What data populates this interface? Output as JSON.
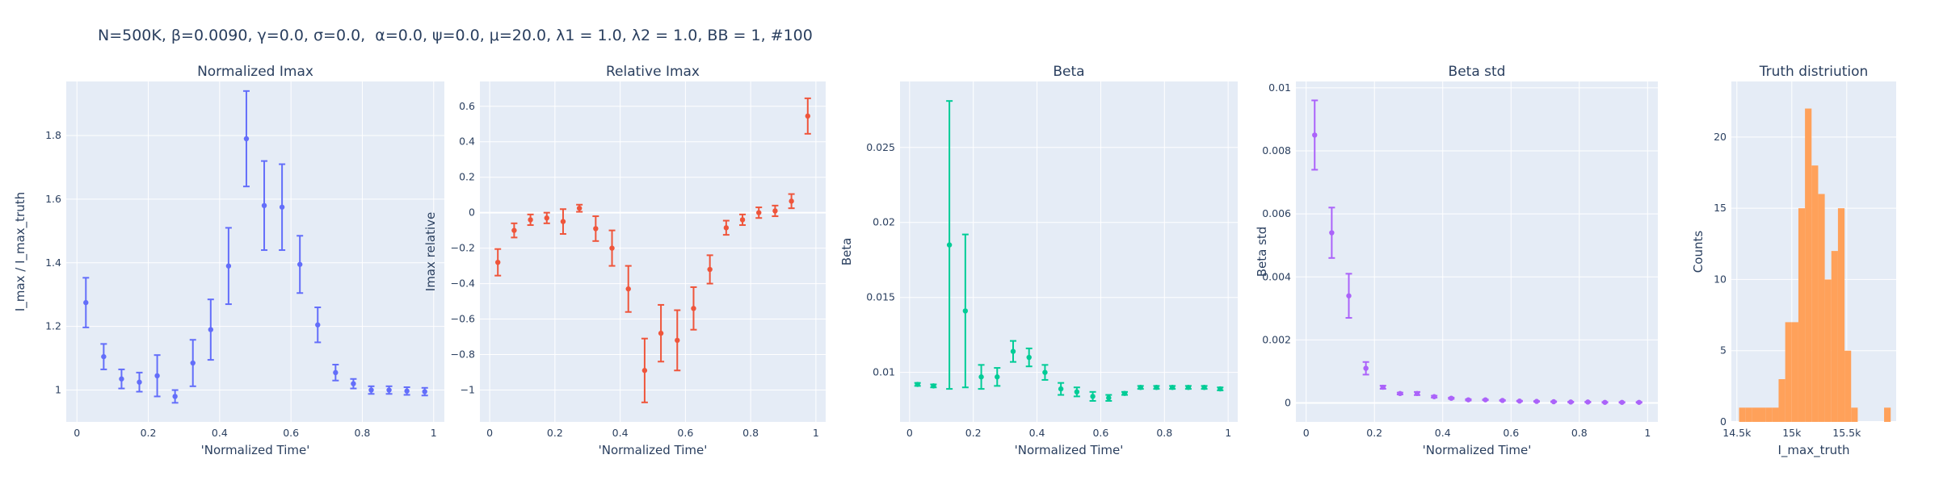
{
  "header": {
    "title": "N=500K, β=0.0090, γ=0.0, σ=0.0,  α=0.0, ψ=0.0, μ=20.0, λ1 = 1.0, λ2 = 1.0, BB = 1, #100"
  },
  "colors": {
    "plot_bg": "#e5ecf6",
    "grid": "#ffffff",
    "text": "#2a3f5f",
    "series": [
      "#636efa",
      "#ef553b",
      "#00cc96",
      "#ab63fa",
      "#ffa15a"
    ]
  },
  "chart_data": [
    {
      "type": "scatter",
      "title": "Normalized Imax",
      "xlabel": "'Normalized Time'",
      "ylabel": "I_max / I_max_truth",
      "xlim": [
        -0.03,
        1.03
      ],
      "ylim": [
        0.9,
        1.97
      ],
      "xticks": [
        0,
        0.2,
        0.4,
        0.6,
        0.8,
        1
      ],
      "xtick_labels": [
        "0",
        "0.2",
        "0.4",
        "0.6",
        "0.8",
        "1"
      ],
      "yticks": [
        1,
        1.2,
        1.4,
        1.6,
        1.8
      ],
      "ytick_labels": [
        "1",
        "1.2",
        "1.4",
        "1.6",
        "1.8"
      ],
      "grid": true,
      "series": [
        {
          "color": "#636efa",
          "x": [
            0.025,
            0.075,
            0.125,
            0.175,
            0.225,
            0.275,
            0.325,
            0.375,
            0.425,
            0.475,
            0.525,
            0.575,
            0.625,
            0.675,
            0.725,
            0.775,
            0.825,
            0.875,
            0.925,
            0.975
          ],
          "y": [
            1.275,
            1.105,
            1.035,
            1.025,
            1.045,
            0.98,
            1.085,
            1.19,
            1.39,
            1.79,
            1.58,
            1.575,
            1.395,
            1.205,
            1.055,
            1.02,
            1.0,
            1.0,
            0.997,
            0.995
          ],
          "err": [
            0.078,
            0.04,
            0.03,
            0.03,
            0.065,
            0.02,
            0.073,
            0.095,
            0.12,
            0.15,
            0.14,
            0.135,
            0.09,
            0.055,
            0.025,
            0.015,
            0.012,
            0.012,
            0.012,
            0.012
          ]
        }
      ]
    },
    {
      "type": "scatter",
      "title": "Relative Imax",
      "xlabel": "'Normalized Time'",
      "ylabel": "Imax relative",
      "xlim": [
        -0.03,
        1.03
      ],
      "ylim": [
        -1.18,
        0.74
      ],
      "xticks": [
        0,
        0.2,
        0.4,
        0.6,
        0.8,
        1
      ],
      "xtick_labels": [
        "0",
        "0.2",
        "0.4",
        "0.6",
        "0.8",
        "1"
      ],
      "yticks": [
        -1,
        -0.8,
        -0.6,
        -0.4,
        -0.2,
        0,
        0.2,
        0.4,
        0.6
      ],
      "ytick_labels": [
        "−1",
        "−0.8",
        "−0.6",
        "−0.4",
        "−0.2",
        "0",
        "0.2",
        "0.4",
        "0.6"
      ],
      "grid": true,
      "series": [
        {
          "color": "#ef553b",
          "x": [
            0.025,
            0.075,
            0.125,
            0.175,
            0.225,
            0.275,
            0.325,
            0.375,
            0.425,
            0.475,
            0.525,
            0.575,
            0.625,
            0.675,
            0.725,
            0.775,
            0.825,
            0.875,
            0.925,
            0.975
          ],
          "y": [
            -0.28,
            -0.1,
            -0.04,
            -0.03,
            -0.05,
            0.025,
            -0.09,
            -0.2,
            -0.43,
            -0.89,
            -0.68,
            -0.72,
            -0.54,
            -0.32,
            -0.085,
            -0.04,
            0.0,
            0.01,
            0.065,
            0.545
          ],
          "err": [
            0.075,
            0.04,
            0.03,
            0.03,
            0.07,
            0.02,
            0.07,
            0.1,
            0.13,
            0.18,
            0.16,
            0.17,
            0.12,
            0.08,
            0.04,
            0.03,
            0.03,
            0.03,
            0.04,
            0.1
          ]
        }
      ]
    },
    {
      "type": "scatter",
      "title": "Beta",
      "xlabel": "'Normalized Time'",
      "ylabel": "Beta",
      "xlim": [
        -0.03,
        1.03
      ],
      "ylim": [
        0.0067,
        0.0294
      ],
      "xticks": [
        0,
        0.2,
        0.4,
        0.6,
        0.8,
        1
      ],
      "xtick_labels": [
        "0",
        "0.2",
        "0.4",
        "0.6",
        "0.8",
        "1"
      ],
      "yticks": [
        0.01,
        0.015,
        0.02,
        0.025
      ],
      "ytick_labels": [
        "0.01",
        "0.015",
        "0.02",
        "0.025"
      ],
      "grid": true,
      "series": [
        {
          "color": "#00cc96",
          "x": [
            0.025,
            0.075,
            0.125,
            0.175,
            0.225,
            0.275,
            0.325,
            0.375,
            0.425,
            0.475,
            0.525,
            0.575,
            0.625,
            0.675,
            0.725,
            0.775,
            0.825,
            0.875,
            0.925,
            0.975
          ],
          "y": [
            0.0092,
            0.0091,
            0.0185,
            0.0141,
            0.0097,
            0.0097,
            0.0114,
            0.011,
            0.01,
            0.0089,
            0.0087,
            0.0084,
            0.0083,
            0.0086,
            0.009,
            0.009,
            0.009,
            0.009,
            0.009,
            0.0089
          ],
          "err": [
            0.0001,
            0.0001,
            0.0096,
            0.0051,
            0.0008,
            0.0006,
            0.0007,
            0.0006,
            0.0005,
            0.0004,
            0.0003,
            0.0003,
            0.0002,
            0.0001,
            0.0001,
            0.0001,
            0.0001,
            0.0001,
            0.0001,
            0.0001
          ]
        }
      ]
    },
    {
      "type": "scatter",
      "title": "Beta std",
      "xlabel": "'Normalized Time'",
      "ylabel": "Beta std",
      "xlim": [
        -0.03,
        1.03
      ],
      "ylim": [
        -0.0006,
        0.0102
      ],
      "xticks": [
        0,
        0.2,
        0.4,
        0.6,
        0.8,
        1
      ],
      "xtick_labels": [
        "0",
        "0.2",
        "0.4",
        "0.6",
        "0.8",
        "1"
      ],
      "yticks": [
        0,
        0.002,
        0.004,
        0.006,
        0.008,
        0.01
      ],
      "ytick_labels": [
        "0",
        "0.002",
        "0.004",
        "0.006",
        "0.008",
        "0.01"
      ],
      "grid": true,
      "series": [
        {
          "color": "#ab63fa",
          "x": [
            0.025,
            0.075,
            0.125,
            0.175,
            0.225,
            0.275,
            0.325,
            0.375,
            0.425,
            0.475,
            0.525,
            0.575,
            0.625,
            0.675,
            0.725,
            0.775,
            0.825,
            0.875,
            0.925,
            0.975
          ],
          "y": [
            0.0085,
            0.0054,
            0.0034,
            0.0011,
            0.0005,
            0.0003,
            0.0003,
            0.0002,
            0.00015,
            0.0001,
            0.0001,
            8e-05,
            6e-05,
            5e-05,
            4e-05,
            3e-05,
            3e-05,
            2e-05,
            2e-05,
            2e-05
          ],
          "err": [
            0.0011,
            0.0008,
            0.0007,
            0.0002,
            5e-05,
            3e-05,
            5e-05,
            3e-05,
            2e-05,
            2e-05,
            1e-05,
            1e-05,
            1e-05,
            1e-05,
            1e-05,
            1e-05,
            1e-05,
            1e-05,
            1e-05,
            1e-05
          ]
        }
      ]
    },
    {
      "type": "bar",
      "title": "Truth distriution",
      "xlabel": "I_max_truth",
      "ylabel": "Counts",
      "xlim": [
        14450,
        15950
      ],
      "ylim": [
        0,
        23.9
      ],
      "xticks": [
        14500,
        15000,
        15500
      ],
      "xtick_labels": [
        "14.5k",
        "15k",
        "15.5k"
      ],
      "yticks": [
        0,
        5,
        10,
        15,
        20
      ],
      "ytick_labels": [
        "0",
        "5",
        "10",
        "15",
        "20"
      ],
      "grid": true,
      "series": [
        {
          "color": "#ffa15a",
          "bin_width": 60,
          "x": [
            14490,
            14550,
            14610,
            14670,
            14730,
            14790,
            14850,
            14910,
            14970,
            15030,
            15090,
            15150,
            15210,
            15270,
            15330,
            15390,
            15450,
            15510,
            15570,
            15630,
            15690,
            15750,
            15810,
            15870,
            15930
          ],
          "values": [
            0,
            1,
            1,
            1,
            1,
            1,
            1,
            3,
            7,
            7,
            15,
            22,
            18,
            16,
            10,
            12,
            15,
            5,
            1,
            0,
            0,
            0,
            0,
            1,
            0
          ]
        }
      ]
    }
  ]
}
